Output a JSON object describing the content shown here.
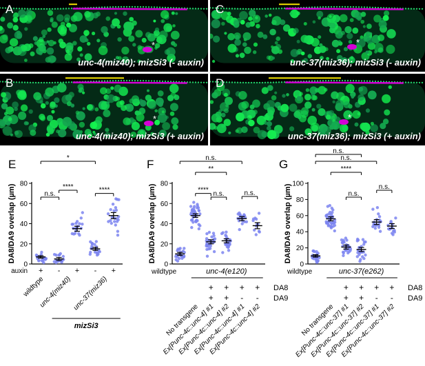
{
  "images": [
    {
      "label": "A",
      "caption": "unc-4(miz40); mizSi3 (- auxin)"
    },
    {
      "label": "C",
      "caption": "unc-37(miz36); mizSi3 (- auxin)"
    },
    {
      "label": "B",
      "caption": "unc-4(miz40); mizSi3 (+ auxin)"
    },
    {
      "label": "D",
      "caption": "unc-37(miz36); mizSi3 (+ auxin)"
    }
  ],
  "colors": {
    "green": "#22d36a",
    "magenta": "#d400d6",
    "yellow": "#f4e300",
    "points": "#7d85f0"
  },
  "chart_data": [
    {
      "panel": "E",
      "type": "scatter",
      "ylabel": "DA8/DA9 overlap (µm)",
      "ylim": [
        0,
        80
      ],
      "yticks": [
        0,
        20,
        40,
        60,
        80
      ],
      "row_labels": [
        "auxin"
      ],
      "groups": [
        {
          "label": "wildtype",
          "auxin": "+",
          "mean": 7,
          "sem": 1.2,
          "n": 20
        },
        {
          "label": "unc-4(miz40)",
          "auxin": "-",
          "mean": 5,
          "sem": 1.5,
          "n": 16
        },
        {
          "label": "",
          "auxin": "+",
          "mean": 35,
          "sem": 2.5,
          "n": 20
        },
        {
          "label": "unc-37(miz36)",
          "auxin": "-",
          "mean": 15,
          "sem": 1.5,
          "n": 20
        },
        {
          "label": "",
          "auxin": "+",
          "mean": 48,
          "sem": 3,
          "n": 22
        }
      ],
      "bottom_label": "mizSi3",
      "stats": [
        {
          "a": 0,
          "b": 1,
          "text": "n.s."
        },
        {
          "a": 1,
          "b": 2,
          "text": "****"
        },
        {
          "a": 0,
          "b": 3,
          "text": "*"
        },
        {
          "a": 3,
          "b": 4,
          "text": "****"
        }
      ]
    },
    {
      "panel": "F",
      "type": "scatter",
      "ylabel": "DA8/DA9 overlap (µm)",
      "ylim": [
        0,
        80
      ],
      "yticks": [
        0,
        20,
        40,
        60,
        80
      ],
      "background_label": "unc-4(e120)",
      "row_labels": [
        "DA8",
        "DA9"
      ],
      "groups": [
        {
          "label": "wildtype",
          "mean": 10,
          "sem": 1.5,
          "n": 22
        },
        {
          "label": "No transgene",
          "mean": 48,
          "sem": 1.8,
          "n": 40,
          "DA8": "",
          "DA9": ""
        },
        {
          "label": "Ex[Punc-4c::unc-4] #1",
          "mean": 22,
          "sem": 2,
          "n": 28,
          "DA8": "+",
          "DA9": "+"
        },
        {
          "label": "Ex[Punc-4c::unc-4] #2",
          "mean": 23,
          "sem": 2,
          "n": 24,
          "DA8": "+",
          "DA9": "+"
        },
        {
          "label": "Ex[Punc-4c::unc-4] #1",
          "mean": 45,
          "sem": 2,
          "n": 18,
          "DA8": "+",
          "DA9": "-"
        },
        {
          "label": "Ex[Punc-4c::unc-4] #2",
          "mean": 38,
          "sem": 3,
          "n": 12,
          "DA8": "+",
          "DA9": "-"
        }
      ],
      "stats": [
        {
          "a": 0,
          "b": 4,
          "text": "n.s."
        },
        {
          "a": 1,
          "b": 3,
          "text": "**"
        },
        {
          "a": 1,
          "b": 2,
          "text": "****"
        },
        {
          "a": 2,
          "b": 3,
          "text": "n.s."
        },
        {
          "a": 4,
          "b": 5,
          "text": "n.s."
        }
      ]
    },
    {
      "panel": "G",
      "type": "scatter",
      "ylabel": "DA8/DA9 overlap (µm)",
      "ylim": [
        0,
        100
      ],
      "yticks": [
        0,
        20,
        40,
        60,
        80,
        100
      ],
      "background_label": "unc-37(e262)",
      "row_labels": [
        "DA8",
        "DA9"
      ],
      "groups": [
        {
          "label": "wildtype",
          "mean": 10,
          "sem": 1.5,
          "n": 24
        },
        {
          "label": "No transgene",
          "mean": 56,
          "sem": 2.5,
          "n": 40,
          "DA8": "",
          "DA9": ""
        },
        {
          "label": "Ex[Punc-4c::unc-37] #1",
          "mean": 21,
          "sem": 2.5,
          "n": 26,
          "DA8": "+",
          "DA9": "+"
        },
        {
          "label": "Ex[Punc-4c::unc-37] #2",
          "mean": 18,
          "sem": 2.5,
          "n": 24,
          "DA8": "+",
          "DA9": "+"
        },
        {
          "label": "Ex[Punc-4c::unc-37] #1",
          "mean": 52,
          "sem": 3,
          "n": 18,
          "DA8": "+",
          "DA9": "-"
        },
        {
          "label": "Ex[Punc-4c::unc-37] #2",
          "mean": 47,
          "sem": 3,
          "n": 14,
          "DA8": "+",
          "DA9": "-"
        }
      ],
      "stats": [
        {
          "a": 0,
          "b": 4,
          "text": "n.s."
        },
        {
          "a": 0,
          "b": 3,
          "text": "n.s."
        },
        {
          "a": 1,
          "b": 3,
          "text": "****"
        },
        {
          "a": 2,
          "b": 3,
          "text": "n.s."
        },
        {
          "a": 4,
          "b": 5,
          "text": "n.s."
        }
      ]
    }
  ]
}
